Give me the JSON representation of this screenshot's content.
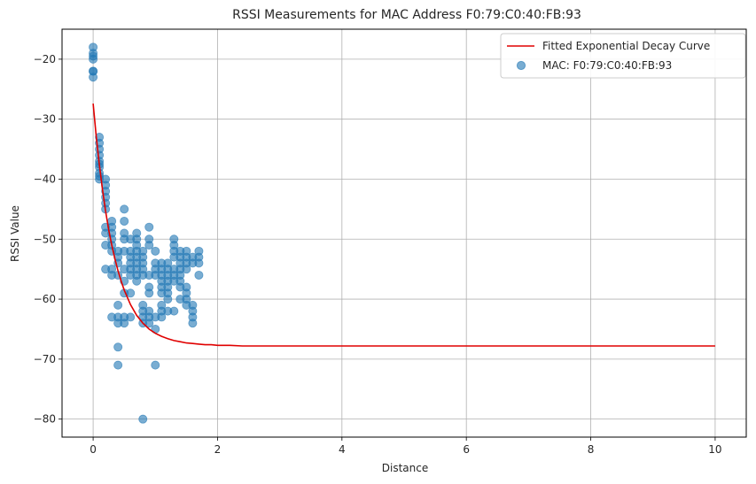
{
  "chart_data": {
    "type": "scatter",
    "title": "RSSI Measurements for MAC Address F0:79:C0:40:FB:93",
    "xlabel": "Distance",
    "ylabel": "RSSI Value",
    "xlim": [
      -0.5,
      10.5
    ],
    "ylim": [
      -83,
      -15
    ],
    "xticks": [
      0,
      2,
      4,
      6,
      8,
      10
    ],
    "yticks": [
      -80,
      -70,
      -60,
      -50,
      -40,
      -30,
      -20
    ],
    "grid": true,
    "legend_position": "upper-right",
    "series": [
      {
        "name": "Fitted Exponential Decay Curve",
        "kind": "line",
        "color": "#e00000",
        "x": [
          0,
          0.05,
          0.1,
          0.15,
          0.2,
          0.25,
          0.3,
          0.35,
          0.4,
          0.45,
          0.5,
          0.6,
          0.7,
          0.8,
          0.9,
          1.0,
          1.1,
          1.2,
          1.3,
          1.4,
          1.5,
          1.6,
          1.7,
          1.8,
          1.9,
          2.0,
          2.2,
          2.4,
          2.6,
          2.8,
          3.0,
          3.5,
          4.0,
          5.0,
          6.0,
          7.0,
          8.0,
          9.0,
          10.0
        ],
        "y": [
          -27.4,
          -32.9,
          -37.6,
          -41.7,
          -45.3,
          -48.4,
          -51.0,
          -53.3,
          -55.3,
          -57.0,
          -58.5,
          -60.9,
          -62.7,
          -64.0,
          -65.0,
          -65.7,
          -66.2,
          -66.6,
          -66.9,
          -67.1,
          -67.3,
          -67.4,
          -67.5,
          -67.6,
          -67.6,
          -67.7,
          -67.7,
          -67.8,
          -67.8,
          -67.8,
          -67.8,
          -67.8,
          -67.8,
          -67.8,
          -67.8,
          -67.8,
          -67.8,
          -67.8,
          -67.8
        ]
      },
      {
        "name": "MAC: F0:79:C0:40:FB:93",
        "kind": "scatter",
        "color": "#1f77b4",
        "points": [
          [
            0,
            -18
          ],
          [
            0,
            -19
          ],
          [
            0,
            -19.5
          ],
          [
            0,
            -20
          ],
          [
            0,
            -22
          ],
          [
            0,
            -22
          ],
          [
            0,
            -23
          ],
          [
            0.1,
            -33
          ],
          [
            0.1,
            -34
          ],
          [
            0.1,
            -35
          ],
          [
            0.1,
            -36
          ],
          [
            0.1,
            -37
          ],
          [
            0.1,
            -37.5
          ],
          [
            0.1,
            -38
          ],
          [
            0.1,
            -39
          ],
          [
            0.1,
            -39.5
          ],
          [
            0.1,
            -40
          ],
          [
            0.2,
            -40
          ],
          [
            0.2,
            -41
          ],
          [
            0.2,
            -42
          ],
          [
            0.2,
            -43
          ],
          [
            0.2,
            -44
          ],
          [
            0.2,
            -45
          ],
          [
            0.2,
            -48
          ],
          [
            0.2,
            -49
          ],
          [
            0.2,
            -51
          ],
          [
            0.2,
            -55
          ],
          [
            0.3,
            -47
          ],
          [
            0.3,
            -48
          ],
          [
            0.3,
            -49
          ],
          [
            0.3,
            -50
          ],
          [
            0.3,
            -51
          ],
          [
            0.3,
            -52
          ],
          [
            0.3,
            -55
          ],
          [
            0.3,
            -56
          ],
          [
            0.3,
            -63
          ],
          [
            0.4,
            -52
          ],
          [
            0.4,
            -53
          ],
          [
            0.4,
            -54
          ],
          [
            0.4,
            -56
          ],
          [
            0.4,
            -61
          ],
          [
            0.4,
            -63
          ],
          [
            0.4,
            -64
          ],
          [
            0.4,
            -68
          ],
          [
            0.4,
            -71
          ],
          [
            0.5,
            -45
          ],
          [
            0.5,
            -47
          ],
          [
            0.5,
            -49
          ],
          [
            0.5,
            -50
          ],
          [
            0.5,
            -52
          ],
          [
            0.5,
            -55
          ],
          [
            0.5,
            -57
          ],
          [
            0.5,
            -59
          ],
          [
            0.5,
            -63
          ],
          [
            0.5,
            -64
          ],
          [
            0.6,
            -50
          ],
          [
            0.6,
            -52
          ],
          [
            0.6,
            -53
          ],
          [
            0.6,
            -54
          ],
          [
            0.6,
            -55
          ],
          [
            0.6,
            -56
          ],
          [
            0.6,
            -59
          ],
          [
            0.6,
            -63
          ],
          [
            0.7,
            -49
          ],
          [
            0.7,
            -50
          ],
          [
            0.7,
            -51
          ],
          [
            0.7,
            -52
          ],
          [
            0.7,
            -53
          ],
          [
            0.7,
            -54
          ],
          [
            0.7,
            -55
          ],
          [
            0.7,
            -56
          ],
          [
            0.7,
            -57
          ],
          [
            0.8,
            -52
          ],
          [
            0.8,
            -53
          ],
          [
            0.8,
            -54
          ],
          [
            0.8,
            -55
          ],
          [
            0.8,
            -56
          ],
          [
            0.8,
            -61
          ],
          [
            0.8,
            -62
          ],
          [
            0.8,
            -63
          ],
          [
            0.8,
            -64
          ],
          [
            0.8,
            -80
          ],
          [
            0.9,
            -48
          ],
          [
            0.9,
            -50
          ],
          [
            0.9,
            -51
          ],
          [
            0.9,
            -56
          ],
          [
            0.9,
            -58
          ],
          [
            0.9,
            -59
          ],
          [
            0.9,
            -62
          ],
          [
            0.9,
            -63
          ],
          [
            0.9,
            -64
          ],
          [
            1.0,
            -52
          ],
          [
            1.0,
            -54
          ],
          [
            1.0,
            -55
          ],
          [
            1.0,
            -56
          ],
          [
            1.0,
            -63
          ],
          [
            1.0,
            -65
          ],
          [
            1.0,
            -71
          ],
          [
            1.1,
            -54
          ],
          [
            1.1,
            -55
          ],
          [
            1.1,
            -56
          ],
          [
            1.1,
            -57
          ],
          [
            1.1,
            -58
          ],
          [
            1.1,
            -59
          ],
          [
            1.1,
            -61
          ],
          [
            1.1,
            -62
          ],
          [
            1.1,
            -63
          ],
          [
            1.2,
            -54
          ],
          [
            1.2,
            -55
          ],
          [
            1.2,
            -56
          ],
          [
            1.2,
            -57
          ],
          [
            1.2,
            -58
          ],
          [
            1.2,
            -59
          ],
          [
            1.2,
            -60
          ],
          [
            1.2,
            -62
          ],
          [
            1.3,
            -50
          ],
          [
            1.3,
            -51
          ],
          [
            1.3,
            -52
          ],
          [
            1.3,
            -53
          ],
          [
            1.3,
            -55
          ],
          [
            1.3,
            -56
          ],
          [
            1.3,
            -57
          ],
          [
            1.3,
            -62
          ],
          [
            1.4,
            -52
          ],
          [
            1.4,
            -53
          ],
          [
            1.4,
            -54
          ],
          [
            1.4,
            -55
          ],
          [
            1.4,
            -56
          ],
          [
            1.4,
            -57
          ],
          [
            1.4,
            -58
          ],
          [
            1.4,
            -60
          ],
          [
            1.5,
            -52
          ],
          [
            1.5,
            -53
          ],
          [
            1.5,
            -54
          ],
          [
            1.5,
            -55
          ],
          [
            1.5,
            -58
          ],
          [
            1.5,
            -59
          ],
          [
            1.5,
            -60
          ],
          [
            1.5,
            -61
          ],
          [
            1.6,
            -53
          ],
          [
            1.6,
            -54
          ],
          [
            1.6,
            -61
          ],
          [
            1.6,
            -62
          ],
          [
            1.6,
            -63
          ],
          [
            1.6,
            -64
          ],
          [
            1.7,
            -52
          ],
          [
            1.7,
            -53
          ],
          [
            1.7,
            -54
          ],
          [
            1.7,
            -56
          ]
        ]
      }
    ]
  }
}
